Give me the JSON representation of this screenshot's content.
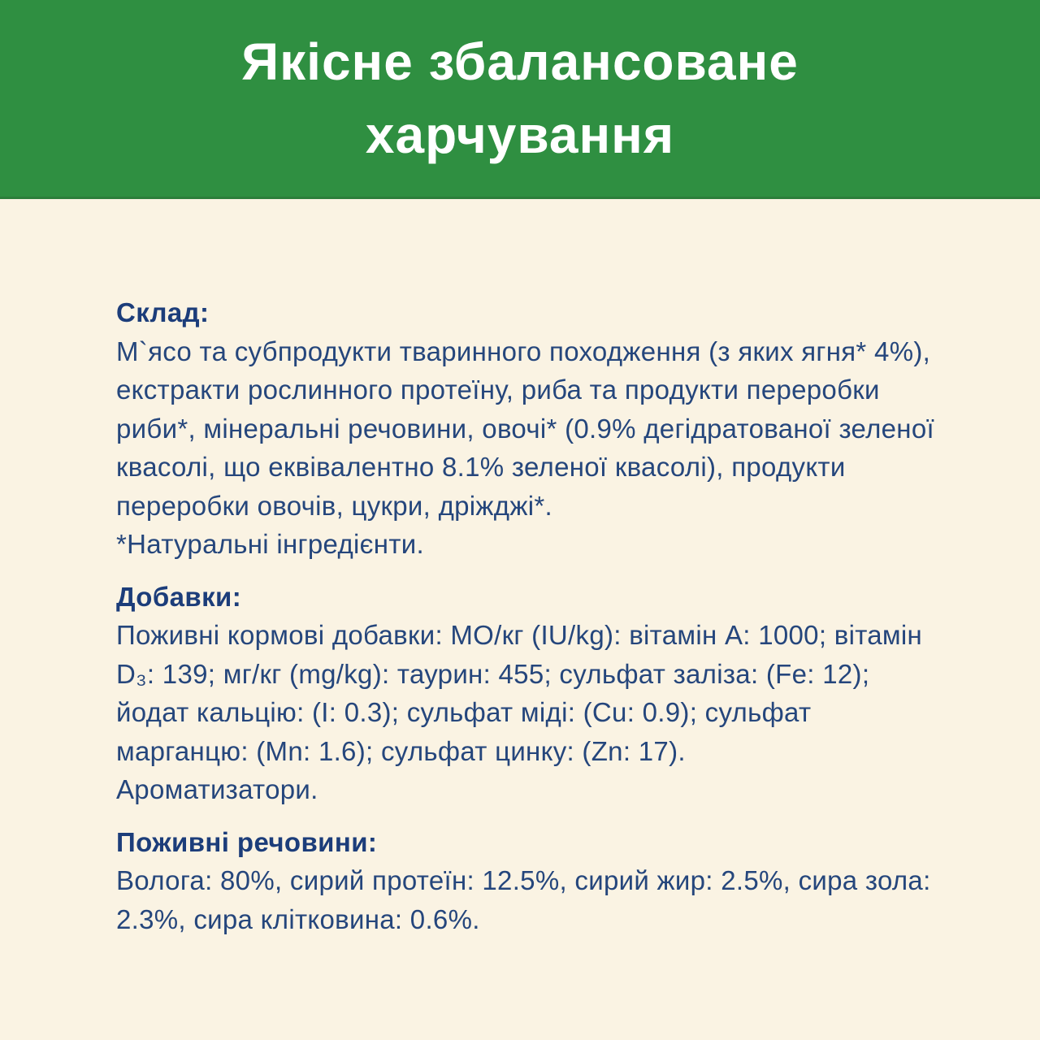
{
  "banner": {
    "title": "Якісне збалансоване\nхарчування"
  },
  "sections": [
    {
      "heading": "Склад:",
      "body": "М`ясо та субпродукти тваринного походження (з яких ягня* 4%),\nекстракти рослинного протеїну, риба та продукти переробки\nриби*, мінеральні речовини, овочі* (0.9% дегідратованої зеленої\nквасолі, що еквівалентно 8.1% зеленої квасолі), продукти\nпереробки овочів, цукри, дріжджі*.\n*Натуральні інгредієнти."
    },
    {
      "heading": "Добавки:",
      "body": "Поживні кормові добавки: МО/кг (IU/kg): вітамін А: 1000; вітамін\nD₃: 139; мг/кг (mg/kg): таурин: 455; сульфат заліза: (Fe: 12);\nйодат кальцію: (I: 0.3); сульфат міді: (Cu: 0.9); сульфат\nмарганцю: (Mn: 1.6); сульфат цинку: (Zn: 17).\nАроматизатори."
    },
    {
      "heading": "Поживні речовини:",
      "body": "Волога: 80%, сирий протеїн: 12.5%, сирий жир: 2.5%, сира зола:\n2.3%, сира клітковина: 0.6%."
    }
  ],
  "colors": {
    "banner_green": "#2f8f41",
    "banner_edge_green": "#2c7e3a",
    "background_cream": "#faf3e3",
    "heading_navy": "#1c3d7a",
    "body_navy": "#25467c",
    "title_white": "#ffffff"
  }
}
